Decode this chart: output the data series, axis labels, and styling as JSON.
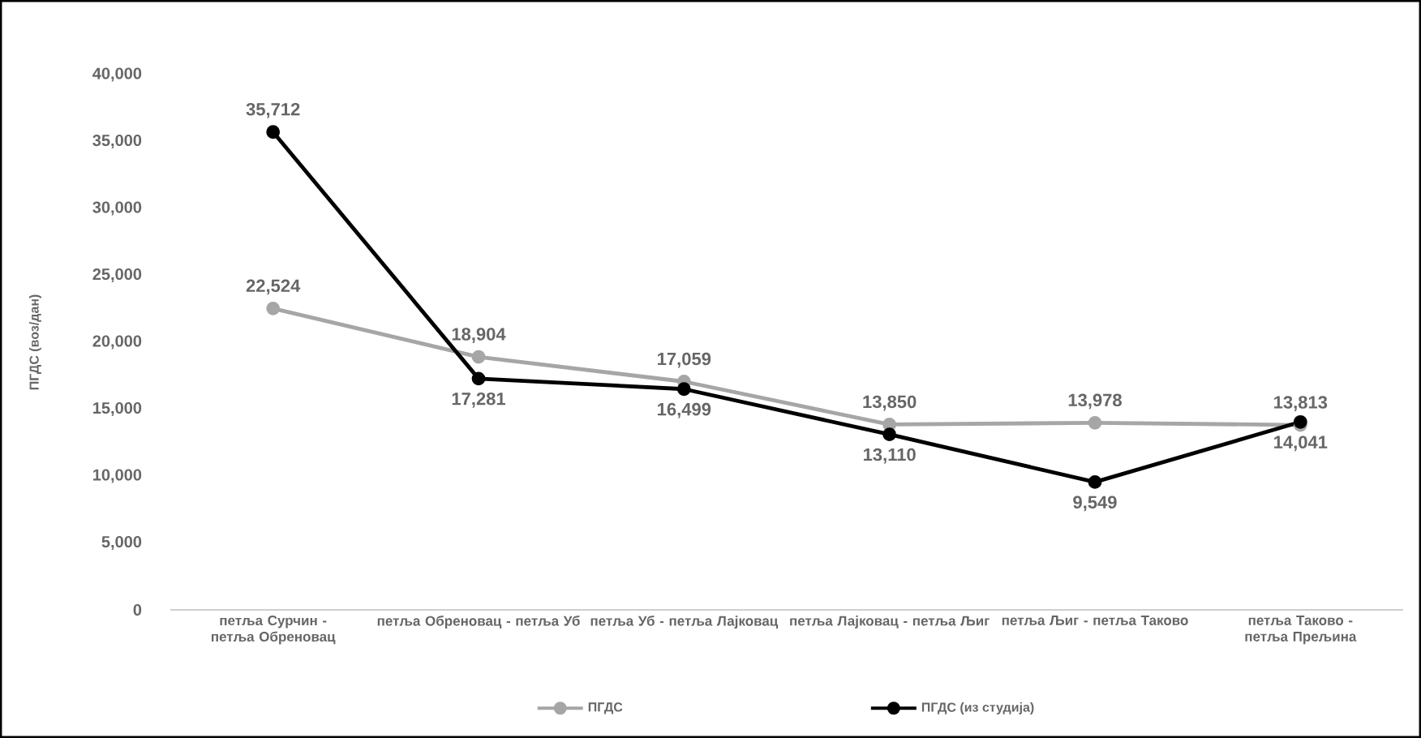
{
  "chart_data": {
    "type": "line",
    "ylabel": "ПГДС (воз/дан)",
    "categories": [
      "петља Сурчин - петља Обреновац",
      "петља Обреновац - петља Уб",
      "петља Уб - петља Лајковац",
      "петља Лајковац - петља Љиг",
      "петља Љиг - петља Таково",
      "петља Таково - петља Прељина"
    ],
    "series": [
      {
        "name": "ПГДС",
        "color": "#a6a6a6",
        "values": [
          22524,
          18904,
          17059,
          13850,
          13978,
          13813
        ],
        "value_labels": [
          "22,524",
          "18,904",
          "17,059",
          "13,850",
          "13,978",
          "13,813"
        ]
      },
      {
        "name": "ПГДС (из студија)",
        "color": "#000000",
        "values": [
          35712,
          17281,
          16499,
          13110,
          9549,
          14041
        ],
        "value_labels": [
          "35,712",
          "17,281",
          "16,499",
          "13,110",
          "9,549",
          "14,041"
        ]
      }
    ],
    "ylim": [
      0,
      40000
    ],
    "yticks": [
      {
        "value": 0,
        "label": "0"
      },
      {
        "value": 5000,
        "label": "5,000"
      },
      {
        "value": 10000,
        "label": "10,000"
      },
      {
        "value": 15000,
        "label": "15,000"
      },
      {
        "value": 20000,
        "label": "20,000"
      },
      {
        "value": 25000,
        "label": "25,000"
      },
      {
        "value": 30000,
        "label": "30,000"
      },
      {
        "value": 35000,
        "label": "35,000"
      },
      {
        "value": 40000,
        "label": "40,000"
      }
    ],
    "legend": "bottom",
    "marker": "circle",
    "line_style": "solid"
  }
}
